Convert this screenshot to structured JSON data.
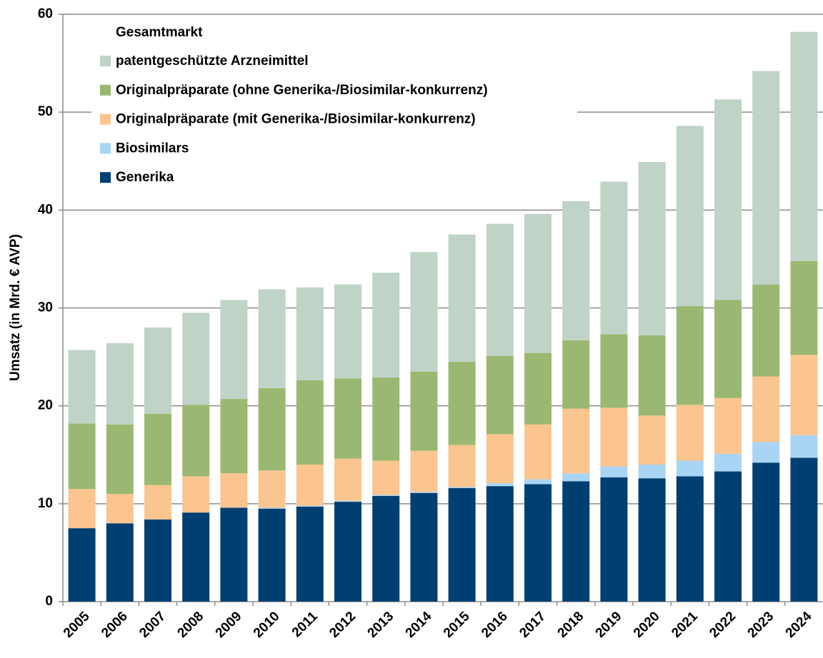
{
  "chart_data": {
    "type": "stacked_bar",
    "y_label": "Umsatz (in Mrd. € AVP)",
    "legend_title": "Gesamtmarkt",
    "categories": [
      "2005",
      "2006",
      "2007",
      "2008",
      "2009",
      "2010",
      "2011",
      "2012",
      "2013",
      "2014",
      "2015",
      "2016",
      "2017",
      "2018",
      "2019",
      "2020",
      "2021",
      "2022",
      "2023",
      "2024"
    ],
    "series": [
      {
        "name": "Generika",
        "color": "#003f72",
        "values": [
          7.5,
          8.0,
          8.4,
          9.1,
          9.6,
          9.5,
          9.7,
          10.2,
          10.8,
          11.1,
          11.6,
          11.8,
          12.0,
          12.3,
          12.7,
          12.6,
          12.8,
          13.3,
          14.2,
          14.7
        ]
      },
      {
        "name": "Biosimilars",
        "color": "#a9d5f5",
        "values": [
          0,
          0,
          0,
          0,
          0,
          0.1,
          0.1,
          0.1,
          0.1,
          0.1,
          0.1,
          0.3,
          0.5,
          0.8,
          1.1,
          1.4,
          1.6,
          1.8,
          2.1,
          2.3
        ]
      },
      {
        "name": "Originalpräparate (mit Generika-/Biosimilar-konkurrenz)",
        "color": "#fbc58f",
        "values": [
          4.0,
          3.0,
          3.5,
          3.7,
          3.5,
          3.8,
          4.2,
          4.3,
          3.5,
          4.2,
          4.3,
          5.0,
          5.6,
          6.6,
          6.0,
          5.0,
          5.7,
          5.7,
          6.7,
          8.2
        ]
      },
      {
        "name": "Originalpräparate (ohne Generika-/Biosimilar-konkurrenz)",
        "color": "#9bb872",
        "values": [
          6.7,
          7.1,
          7.3,
          7.3,
          7.6,
          8.4,
          8.6,
          8.2,
          8.5,
          8.1,
          8.5,
          8.0,
          7.3,
          7.0,
          7.5,
          8.2,
          10.1,
          10.0,
          9.4,
          9.6
        ]
      },
      {
        "name": "patentgeschützte Arzneimittel",
        "color": "#bfd3c6",
        "values": [
          7.5,
          8.3,
          8.8,
          9.4,
          10.1,
          10.1,
          9.5,
          9.6,
          10.7,
          12.2,
          13.0,
          13.5,
          14.2,
          14.2,
          15.6,
          17.7,
          18.4,
          20.5,
          21.8,
          23.4
        ]
      }
    ],
    "ylim": [
      0,
      60
    ],
    "yticks": [
      0,
      10,
      20,
      30,
      40,
      50,
      60
    ],
    "grid": true
  }
}
